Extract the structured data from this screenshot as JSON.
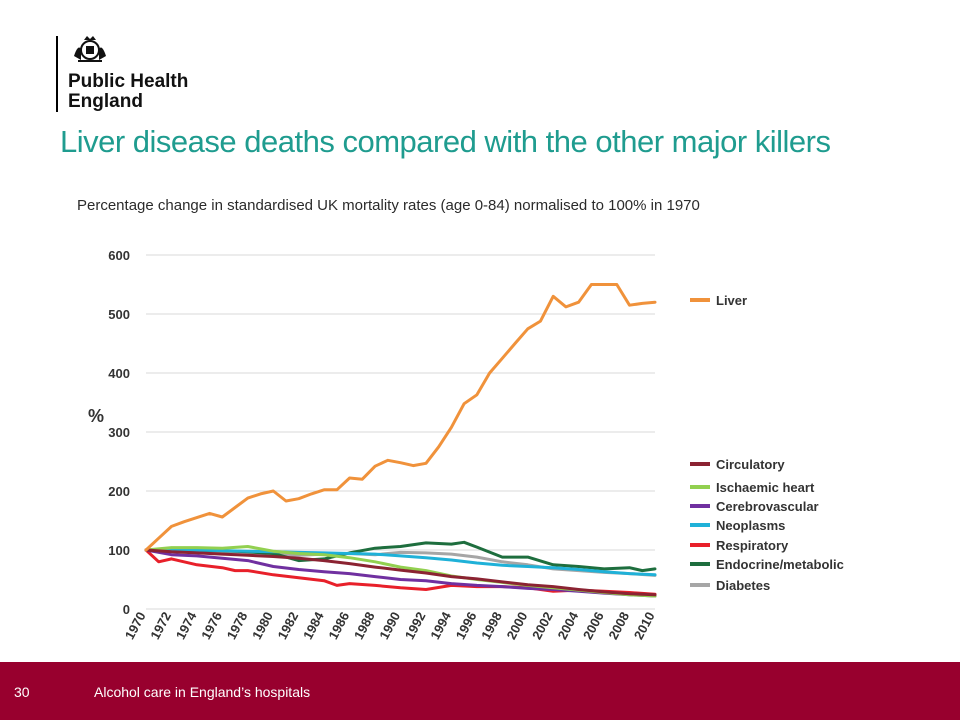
{
  "header": {
    "org_name_line1": "Public Health",
    "org_name_line2": "England",
    "title": "Liver disease deaths compared with the other major killers",
    "subtitle": "Percentage change in standardised UK mortality rates (age 0-84) normalised to 100% in 1970"
  },
  "footer": {
    "page_number": "30",
    "text": "Alcohol care in England’s hospitals"
  },
  "chart_data": {
    "type": "line",
    "title": "",
    "xlabel": "",
    "ylabel": "%",
    "xlim": [
      1970,
      2010
    ],
    "ylim": [
      0,
      600
    ],
    "y_ticks": [
      0,
      100,
      200,
      300,
      400,
      500,
      600
    ],
    "x_ticks": [
      1970,
      1972,
      1974,
      1976,
      1978,
      1980,
      1982,
      1984,
      1986,
      1988,
      1990,
      1992,
      1994,
      1996,
      1998,
      2000,
      2002,
      2004,
      2006,
      2008,
      2010
    ],
    "grid": true,
    "legend": "right",
    "series": [
      {
        "name": "Liver",
        "color": "#f0923b",
        "x": [
          1970,
          1971,
          1972,
          1973,
          1974,
          1975,
          1976,
          1977,
          1978,
          1979,
          1980,
          1981,
          1982,
          1983,
          1984,
          1985,
          1986,
          1987,
          1988,
          1989,
          1990,
          1991,
          1992,
          1993,
          1994,
          1995,
          1996,
          1997,
          1998,
          1999,
          2000,
          2001,
          2002,
          2003,
          2004,
          2005,
          2006,
          2007,
          2008,
          2009,
          2010
        ],
        "values": [
          100,
          120,
          140,
          148,
          155,
          162,
          156,
          172,
          188,
          195,
          200,
          183,
          187,
          195,
          202,
          202,
          222,
          220,
          242,
          252,
          248,
          243,
          247,
          275,
          308,
          348,
          363,
          400,
          425,
          450,
          475,
          488,
          530,
          512,
          520,
          550,
          550,
          550,
          515,
          518,
          520
        ]
      },
      {
        "name": "Circulatory",
        "color": "#8b2332",
        "x": [
          1970,
          1972,
          1974,
          1976,
          1978,
          1980,
          1982,
          1984,
          1986,
          1988,
          1990,
          1992,
          1994,
          1996,
          1998,
          2000,
          2002,
          2004,
          2006,
          2008,
          2010
        ],
        "values": [
          100,
          97,
          95,
          93,
          91,
          89,
          86,
          82,
          77,
          71,
          66,
          61,
          55,
          51,
          46,
          41,
          38,
          33,
          29,
          26,
          24
        ]
      },
      {
        "name": "Ischaemic heart",
        "color": "#92d050",
        "x": [
          1970,
          1972,
          1974,
          1976,
          1978,
          1980,
          1982,
          1984,
          1986,
          1988,
          1990,
          1992,
          1994,
          1996,
          1998,
          2000,
          2002,
          2004,
          2006,
          2008,
          2010
        ],
        "values": [
          100,
          104,
          104,
          103,
          106,
          98,
          94,
          92,
          87,
          80,
          71,
          65,
          56,
          50,
          45,
          40,
          36,
          32,
          28,
          24,
          22
        ]
      },
      {
        "name": "Cerebrovascular",
        "color": "#7030a0",
        "x": [
          1970,
          1972,
          1974,
          1976,
          1978,
          1980,
          1982,
          1984,
          1986,
          1988,
          1990,
          1992,
          1994,
          1996,
          1998,
          2000,
          2002,
          2004,
          2006,
          2008,
          2010
        ],
        "values": [
          100,
          92,
          90,
          86,
          82,
          72,
          67,
          63,
          60,
          55,
          50,
          48,
          43,
          40,
          38,
          35,
          33,
          30,
          27,
          24,
          22
        ]
      },
      {
        "name": "Neoplasms",
        "color": "#1fb1d8",
        "x": [
          1970,
          1972,
          1974,
          1976,
          1978,
          1980,
          1982,
          1984,
          1986,
          1988,
          1990,
          1992,
          1994,
          1996,
          1998,
          2000,
          2002,
          2004,
          2006,
          2008,
          2010
        ],
        "values": [
          100,
          101,
          100,
          99,
          98,
          97,
          96,
          95,
          94,
          93,
          90,
          87,
          83,
          78,
          74,
          72,
          70,
          67,
          63,
          60,
          58
        ]
      },
      {
        "name": "Respiratory",
        "color": "#e8202a",
        "x": [
          1970,
          1971,
          1972,
          1974,
          1976,
          1977,
          1978,
          1980,
          1982,
          1984,
          1985,
          1986,
          1988,
          1990,
          1992,
          1994,
          1996,
          1998,
          2000,
          2002,
          2004,
          2006,
          2008,
          2010
        ],
        "values": [
          100,
          80,
          85,
          75,
          70,
          65,
          65,
          58,
          53,
          48,
          40,
          43,
          40,
          36,
          33,
          40,
          38,
          38,
          36,
          30,
          32,
          30,
          28,
          25
        ]
      },
      {
        "name": "Endocrine/metabolic",
        "color": "#1e6e3e",
        "x": [
          1970,
          1972,
          1974,
          1976,
          1978,
          1980,
          1982,
          1984,
          1986,
          1988,
          1990,
          1992,
          1994,
          1995,
          1996,
          1998,
          2000,
          2002,
          2004,
          2006,
          2008,
          2009,
          2010
        ],
        "values": [
          100,
          100,
          99,
          99,
          97,
          94,
          82,
          85,
          95,
          103,
          106,
          112,
          110,
          113,
          105,
          88,
          88,
          75,
          72,
          68,
          70,
          65,
          68
        ]
      },
      {
        "name": "Diabetes",
        "color": "#a6a6a6",
        "x": [
          1970,
          1972,
          1974,
          1976,
          1978,
          1980,
          1982,
          1984,
          1986,
          1988,
          1990,
          1992,
          1994,
          1996,
          1998,
          2000,
          2002,
          2004,
          2006,
          2008,
          2010
        ],
        "values": [
          100,
          99,
          97,
          96,
          95,
          93,
          91,
          93,
          94,
          92,
          96,
          95,
          93,
          88,
          80,
          75,
          68,
          65,
          62,
          60,
          57
        ]
      }
    ]
  }
}
